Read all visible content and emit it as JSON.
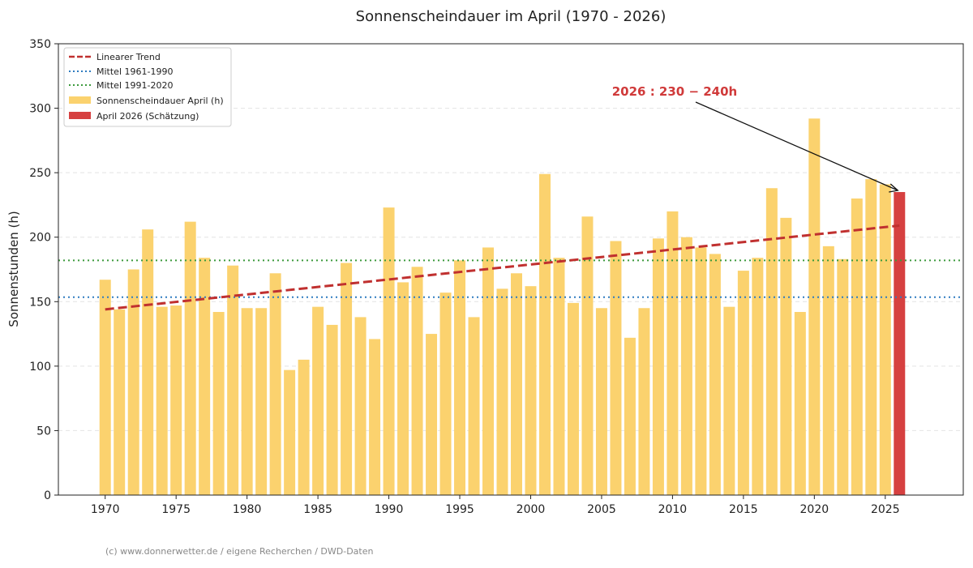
{
  "chart_data": {
    "type": "bar",
    "title": "Sonnenscheindauer im April (1970 - 2026)",
    "xlabel": "",
    "ylabel": "Sonnenstunden (h)",
    "ylim": [
      0,
      350
    ],
    "xlim": [
      1966.7,
      2030.5
    ],
    "yticks": [
      0,
      50,
      100,
      150,
      200,
      250,
      300,
      350
    ],
    "xticks": [
      1970,
      1975,
      1980,
      1985,
      1990,
      1995,
      2000,
      2005,
      2010,
      2015,
      2020,
      2025
    ],
    "grid": "horizontal dashed",
    "legend_position": "top-left",
    "years": [
      1970,
      1971,
      1972,
      1973,
      1974,
      1975,
      1976,
      1977,
      1978,
      1979,
      1980,
      1981,
      1982,
      1983,
      1984,
      1985,
      1986,
      1987,
      1988,
      1989,
      1990,
      1991,
      1992,
      1993,
      1994,
      1995,
      1996,
      1997,
      1998,
      1999,
      2000,
      2001,
      2002,
      2003,
      2004,
      2005,
      2006,
      2007,
      2008,
      2009,
      2010,
      2011,
      2012,
      2013,
      2014,
      2015,
      2016,
      2017,
      2018,
      2019,
      2020,
      2021,
      2022,
      2023,
      2024,
      2025
    ],
    "series": [
      {
        "name": "Sonnenscheindauer April (h)",
        "color": "#FBD26E",
        "values": [
          167,
          144,
          175,
          206,
          146,
          147,
          212,
          184,
          142,
          178,
          145,
          145,
          172,
          97,
          105,
          146,
          132,
          180,
          138,
          121,
          223,
          165,
          177,
          125,
          157,
          182,
          138,
          192,
          160,
          172,
          162,
          249,
          184,
          149,
          216,
          145,
          197,
          122,
          145,
          199,
          220,
          200,
          192,
          187,
          146,
          174,
          184,
          238,
          215,
          142,
          292,
          193,
          183,
          230,
          245,
          241
        ]
      },
      {
        "name": "April 2026 (Schätzung)",
        "color": "#D64040",
        "x": [
          2026
        ],
        "values": [
          235
        ]
      }
    ],
    "trend": {
      "name": "Linearer Trend",
      "color": "#C0302F",
      "x": [
        1970,
        2026
      ],
      "values": [
        144,
        209
      ]
    },
    "means": [
      {
        "name": "Mittel 1961-1990",
        "color": "#2E7BC0",
        "value": 153.5
      },
      {
        "name": "Mittel 1991-2020",
        "color": "#3C9A3C",
        "value": 182
      }
    ],
    "annotation": {
      "text": "2026 : 230 − 240h",
      "color": "#D03A3A",
      "target_x": 2026,
      "target_y": 235
    },
    "footer": "(c) www.donnerwetter.de / eigene Recherchen / DWD-Daten"
  }
}
